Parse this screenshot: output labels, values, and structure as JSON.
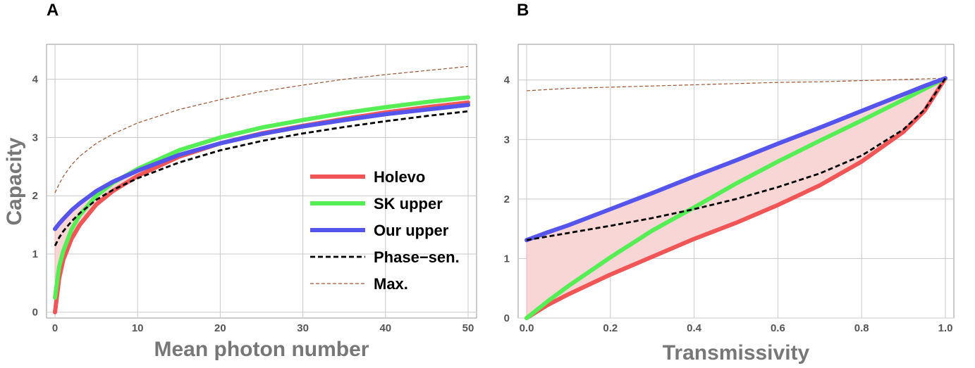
{
  "chart_data": [
    {
      "panel": "A",
      "type": "line",
      "xlabel": "Mean photon number",
      "ylabel": "Capacity",
      "xlim": [
        0,
        50
      ],
      "ylim": [
        -0.1,
        4.6
      ],
      "xticks": [
        "0",
        "10",
        "20",
        "30",
        "40",
        "50"
      ],
      "yticks": [
        "0",
        "1",
        "2",
        "3",
        "4"
      ],
      "grid": true,
      "legend_position": "bottom-right inside",
      "x": [
        0,
        0.5,
        1,
        2,
        3,
        5,
        7,
        10,
        15,
        20,
        25,
        30,
        35,
        40,
        45,
        50
      ],
      "series": [
        {
          "name": "Holevo",
          "color": "#f25555",
          "style": "solid-thick",
          "values": [
            0,
            0.58,
            0.9,
            1.26,
            1.5,
            1.85,
            2.08,
            2.34,
            2.67,
            2.9,
            3.07,
            3.2,
            3.32,
            3.43,
            3.52,
            3.6
          ]
        },
        {
          "name": "SK upper",
          "color": "#55ee55",
          "style": "solid-thick",
          "values": [
            0.25,
            0.78,
            1.05,
            1.42,
            1.67,
            2.0,
            2.22,
            2.46,
            2.78,
            3.0,
            3.17,
            3.3,
            3.42,
            3.52,
            3.61,
            3.69
          ]
        },
        {
          "name": "Our upper",
          "color": "#5555ee",
          "style": "solid-thick",
          "values": [
            1.43,
            1.52,
            1.6,
            1.75,
            1.87,
            2.08,
            2.24,
            2.43,
            2.7,
            2.9,
            3.06,
            3.19,
            3.3,
            3.4,
            3.48,
            3.56
          ]
        },
        {
          "name": "Phase−sen.",
          "color": "#000000",
          "style": "dashed",
          "values": [
            1.14,
            1.28,
            1.39,
            1.56,
            1.7,
            1.93,
            2.1,
            2.3,
            2.57,
            2.78,
            2.94,
            3.07,
            3.18,
            3.28,
            3.37,
            3.45
          ]
        },
        {
          "name": "Max.",
          "color": "#a0522d",
          "style": "dashed-thin",
          "values": [
            2.05,
            2.2,
            2.33,
            2.53,
            2.68,
            2.9,
            3.06,
            3.25,
            3.48,
            3.65,
            3.79,
            3.9,
            4.0,
            4.08,
            4.15,
            4.22
          ]
        }
      ],
      "shaded_region": {
        "between": [
          "Holevo",
          "Our upper"
        ],
        "color": "#f9d6d6"
      }
    },
    {
      "panel": "B",
      "type": "line",
      "xlabel": "Transmissivity",
      "ylabel": "",
      "xlim": [
        0,
        1
      ],
      "ylim": [
        0,
        4.6
      ],
      "xticks": [
        "0.0",
        "0.2",
        "0.4",
        "0.6",
        "0.8",
        "1.0"
      ],
      "yticks": [
        "0",
        "1",
        "2",
        "3",
        "4"
      ],
      "grid": true,
      "x": [
        0,
        0.05,
        0.1,
        0.2,
        0.3,
        0.4,
        0.5,
        0.6,
        0.7,
        0.8,
        0.9,
        0.95,
        1.0
      ],
      "series": [
        {
          "name": "Holevo",
          "color": "#f25555",
          "style": "solid-thick",
          "values": [
            0,
            0.22,
            0.4,
            0.73,
            1.03,
            1.33,
            1.6,
            1.9,
            2.23,
            2.63,
            3.13,
            3.48,
            4.03
          ]
        },
        {
          "name": "SK upper",
          "color": "#55ee55",
          "style": "solid-thick",
          "values": [
            0,
            0.28,
            0.54,
            1.02,
            1.47,
            1.86,
            2.26,
            2.63,
            2.98,
            3.32,
            3.67,
            3.85,
            4.03
          ]
        },
        {
          "name": "Our upper",
          "color": "#5555ee",
          "style": "solid-thick",
          "values": [
            1.31,
            1.44,
            1.56,
            1.83,
            2.1,
            2.38,
            2.65,
            2.93,
            3.2,
            3.48,
            3.76,
            3.9,
            4.03
          ]
        },
        {
          "name": "Phase−sen.",
          "color": "#000000",
          "style": "dashed",
          "values": [
            1.31,
            1.37,
            1.43,
            1.55,
            1.68,
            1.83,
            2.0,
            2.2,
            2.43,
            2.73,
            3.17,
            3.5,
            4.03
          ]
        },
        {
          "name": "Max.",
          "color": "#a0522d",
          "style": "dashed-thin",
          "values": [
            3.82,
            3.84,
            3.86,
            3.88,
            3.9,
            3.92,
            3.94,
            3.96,
            3.97,
            3.99,
            4.01,
            4.02,
            4.03
          ]
        }
      ],
      "shaded_region": {
        "between": [
          "Holevo",
          "Our upper"
        ],
        "color": "#f9d6d6"
      }
    }
  ],
  "legend": [
    {
      "label": "Holevo",
      "color": "#f25555",
      "style": "solid-thick"
    },
    {
      "label": "SK upper",
      "color": "#55ee55",
      "style": "solid-thick"
    },
    {
      "label": "Our upper",
      "color": "#5555ee",
      "style": "solid-thick"
    },
    {
      "label": "Phase−sen.",
      "color": "#000000",
      "style": "dashed"
    },
    {
      "label": "Max.",
      "color": "#a0522d",
      "style": "dashed-thin"
    }
  ]
}
